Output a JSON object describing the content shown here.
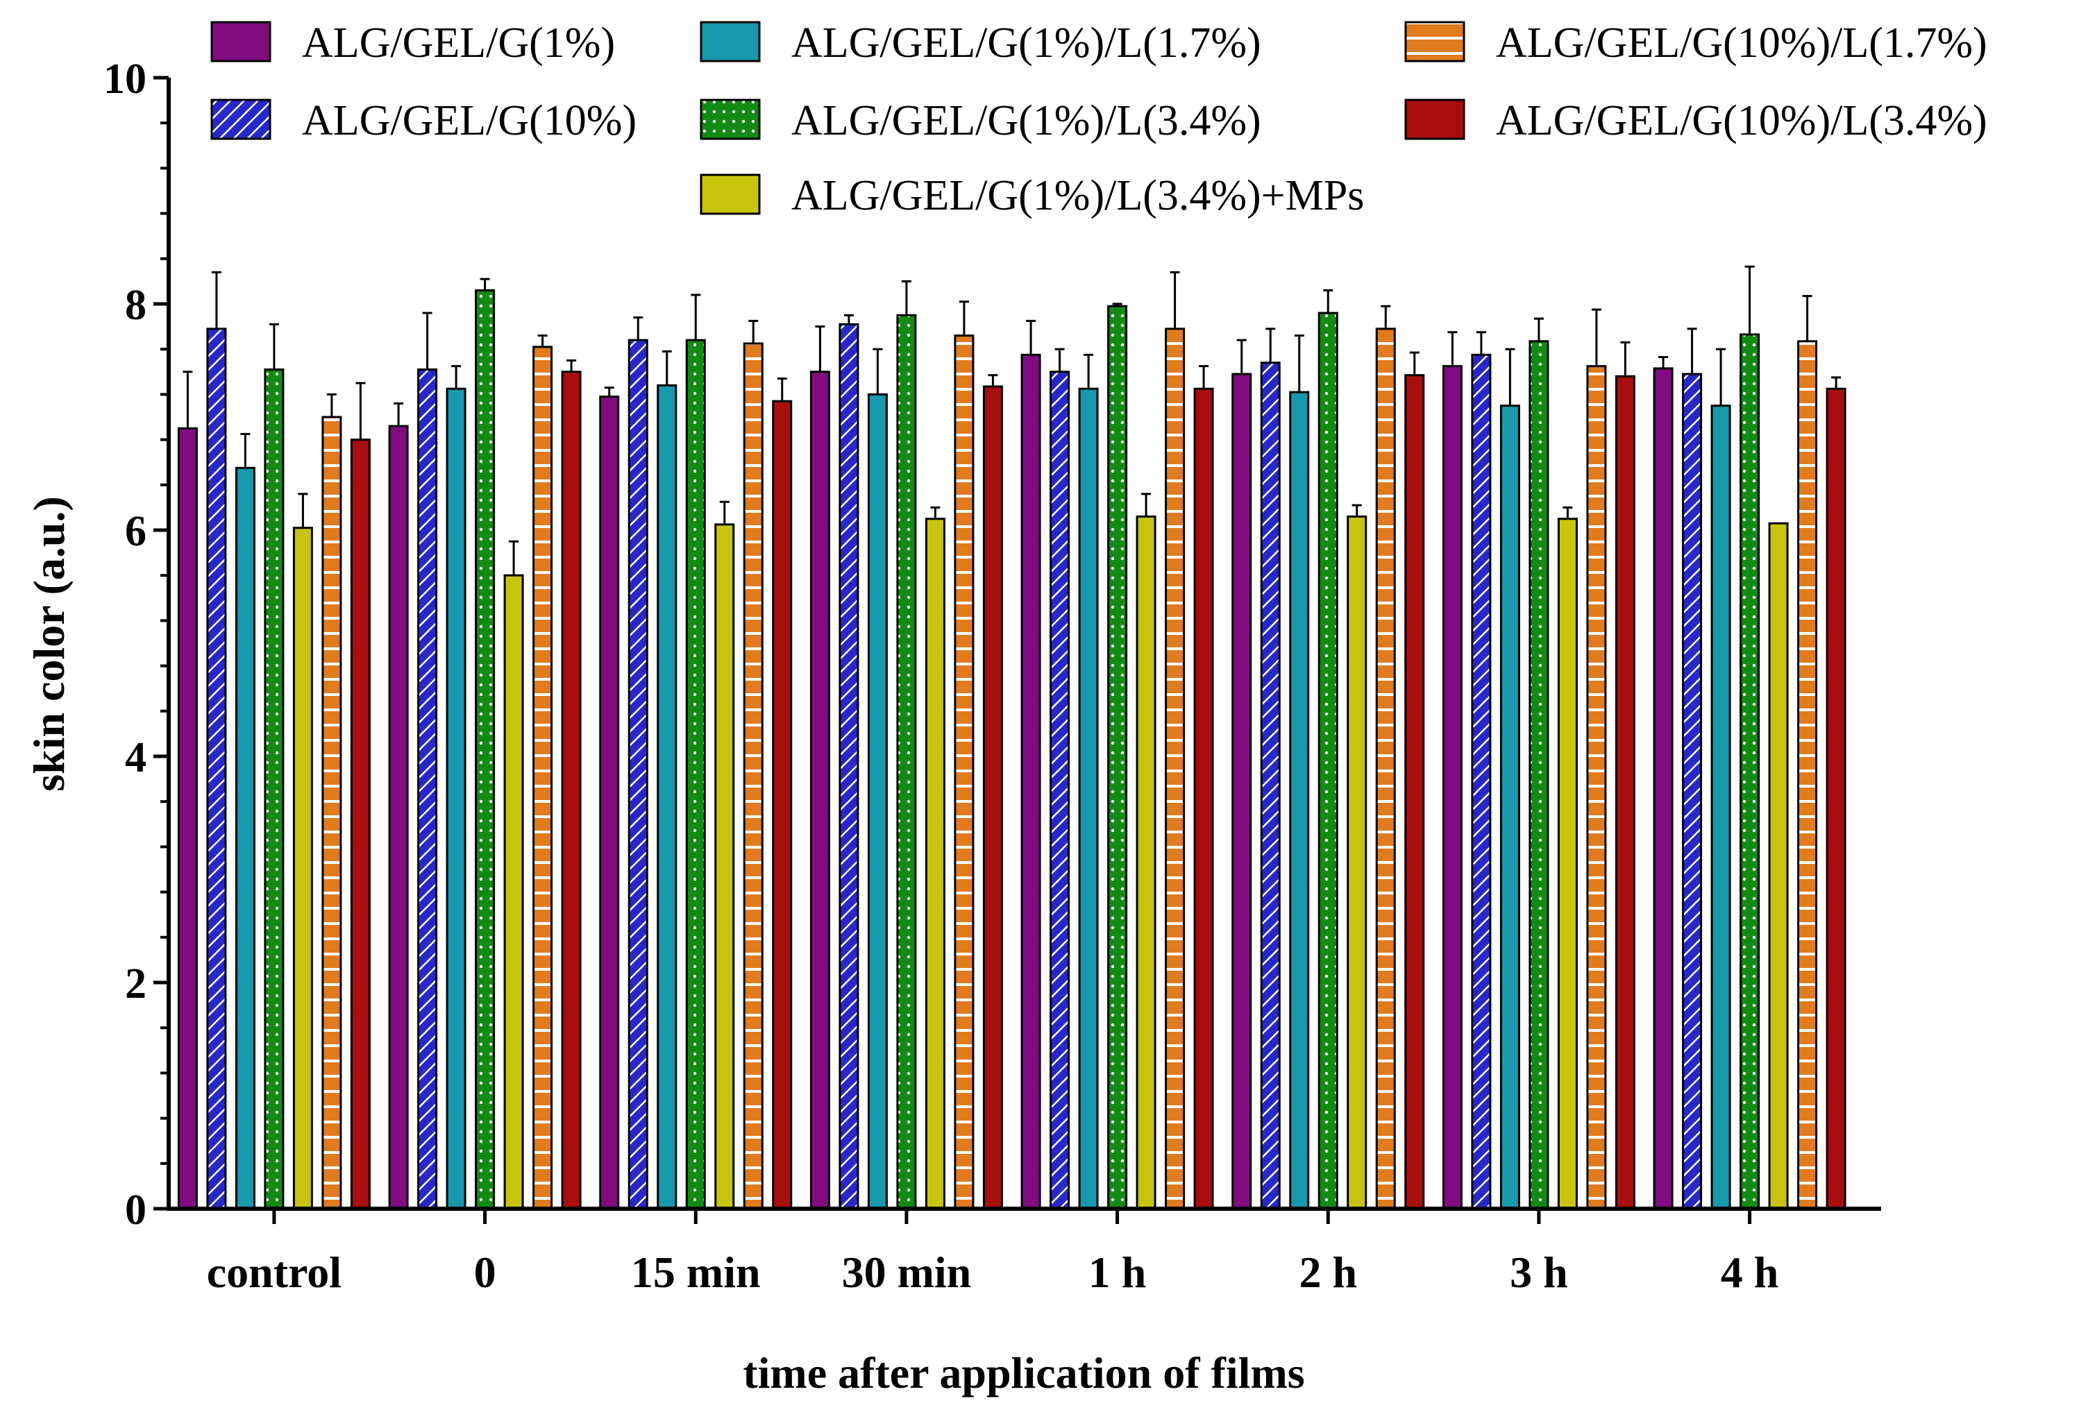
{
  "chart_data": {
    "type": "bar",
    "title": "",
    "xlabel": "time after application of films",
    "ylabel": "skin color (a.u.)",
    "ylim": [
      0,
      10
    ],
    "yticks": [
      "0",
      "2",
      "4",
      "6",
      "8",
      "10"
    ],
    "categories": [
      "control",
      "0",
      "15 min",
      "30 min",
      "1 h",
      "2 h",
      "3 h",
      "4 h"
    ],
    "legend_position": "top",
    "series": [
      {
        "name": "ALG/GEL/G(1%)",
        "color": "#800c80",
        "pattern": "solid",
        "values": [
          6.9,
          6.92,
          7.18,
          7.4,
          7.55,
          7.38,
          7.45,
          7.43
        ],
        "errors": [
          0.5,
          0.2,
          0.08,
          0.4,
          0.3,
          0.3,
          0.3,
          0.1
        ]
      },
      {
        "name": "ALG/GEL/G(10%)",
        "color": "#2828c8",
        "pattern": "diagonal",
        "values": [
          7.78,
          7.42,
          7.68,
          7.82,
          7.4,
          7.48,
          7.55,
          7.38
        ],
        "errors": [
          0.5,
          0.5,
          0.2,
          0.08,
          0.2,
          0.3,
          0.2,
          0.4
        ]
      },
      {
        "name": "ALG/GEL/G(1%)/L(1.7%)",
        "color": "#1798ac",
        "pattern": "solid",
        "values": [
          6.55,
          7.25,
          7.28,
          7.2,
          7.25,
          7.22,
          7.1,
          7.1
        ],
        "errors": [
          0.3,
          0.2,
          0.3,
          0.4,
          0.3,
          0.5,
          0.5,
          0.5
        ]
      },
      {
        "name": "ALG/GEL/G(1%)/L(3.4%)",
        "color": "#138a13",
        "pattern": "dots",
        "values": [
          7.42,
          8.12,
          7.68,
          7.9,
          7.98,
          7.92,
          7.67,
          7.73
        ],
        "errors": [
          0.4,
          0.1,
          0.4,
          0.3,
          0.02,
          0.2,
          0.2,
          0.6
        ]
      },
      {
        "name": "ALG/GEL/G(1%)/L(3.4%)+MPs",
        "color": "#c8c40e",
        "pattern": "solid",
        "values": [
          6.02,
          5.6,
          6.05,
          6.1,
          6.12,
          6.12,
          6.1,
          6.06
        ],
        "errors": [
          0.3,
          0.3,
          0.2,
          0.1,
          0.2,
          0.1,
          0.1,
          0.0
        ]
      },
      {
        "name": "ALG/GEL/G(10%)/L(1.7%)",
        "color": "#e07b1e",
        "pattern": "horizontal",
        "values": [
          7.0,
          7.62,
          7.65,
          7.72,
          7.78,
          7.78,
          7.45,
          7.67
        ],
        "errors": [
          0.2,
          0.1,
          0.2,
          0.3,
          0.5,
          0.2,
          0.5,
          0.4
        ]
      },
      {
        "name": "ALG/GEL/G(10%)/L(3.4%)",
        "color": "#a80e0e",
        "pattern": "solid",
        "values": [
          6.8,
          7.4,
          7.14,
          7.27,
          7.25,
          7.37,
          7.36,
          7.25
        ],
        "errors": [
          0.5,
          0.1,
          0.2,
          0.1,
          0.2,
          0.2,
          0.3,
          0.1
        ]
      }
    ]
  }
}
